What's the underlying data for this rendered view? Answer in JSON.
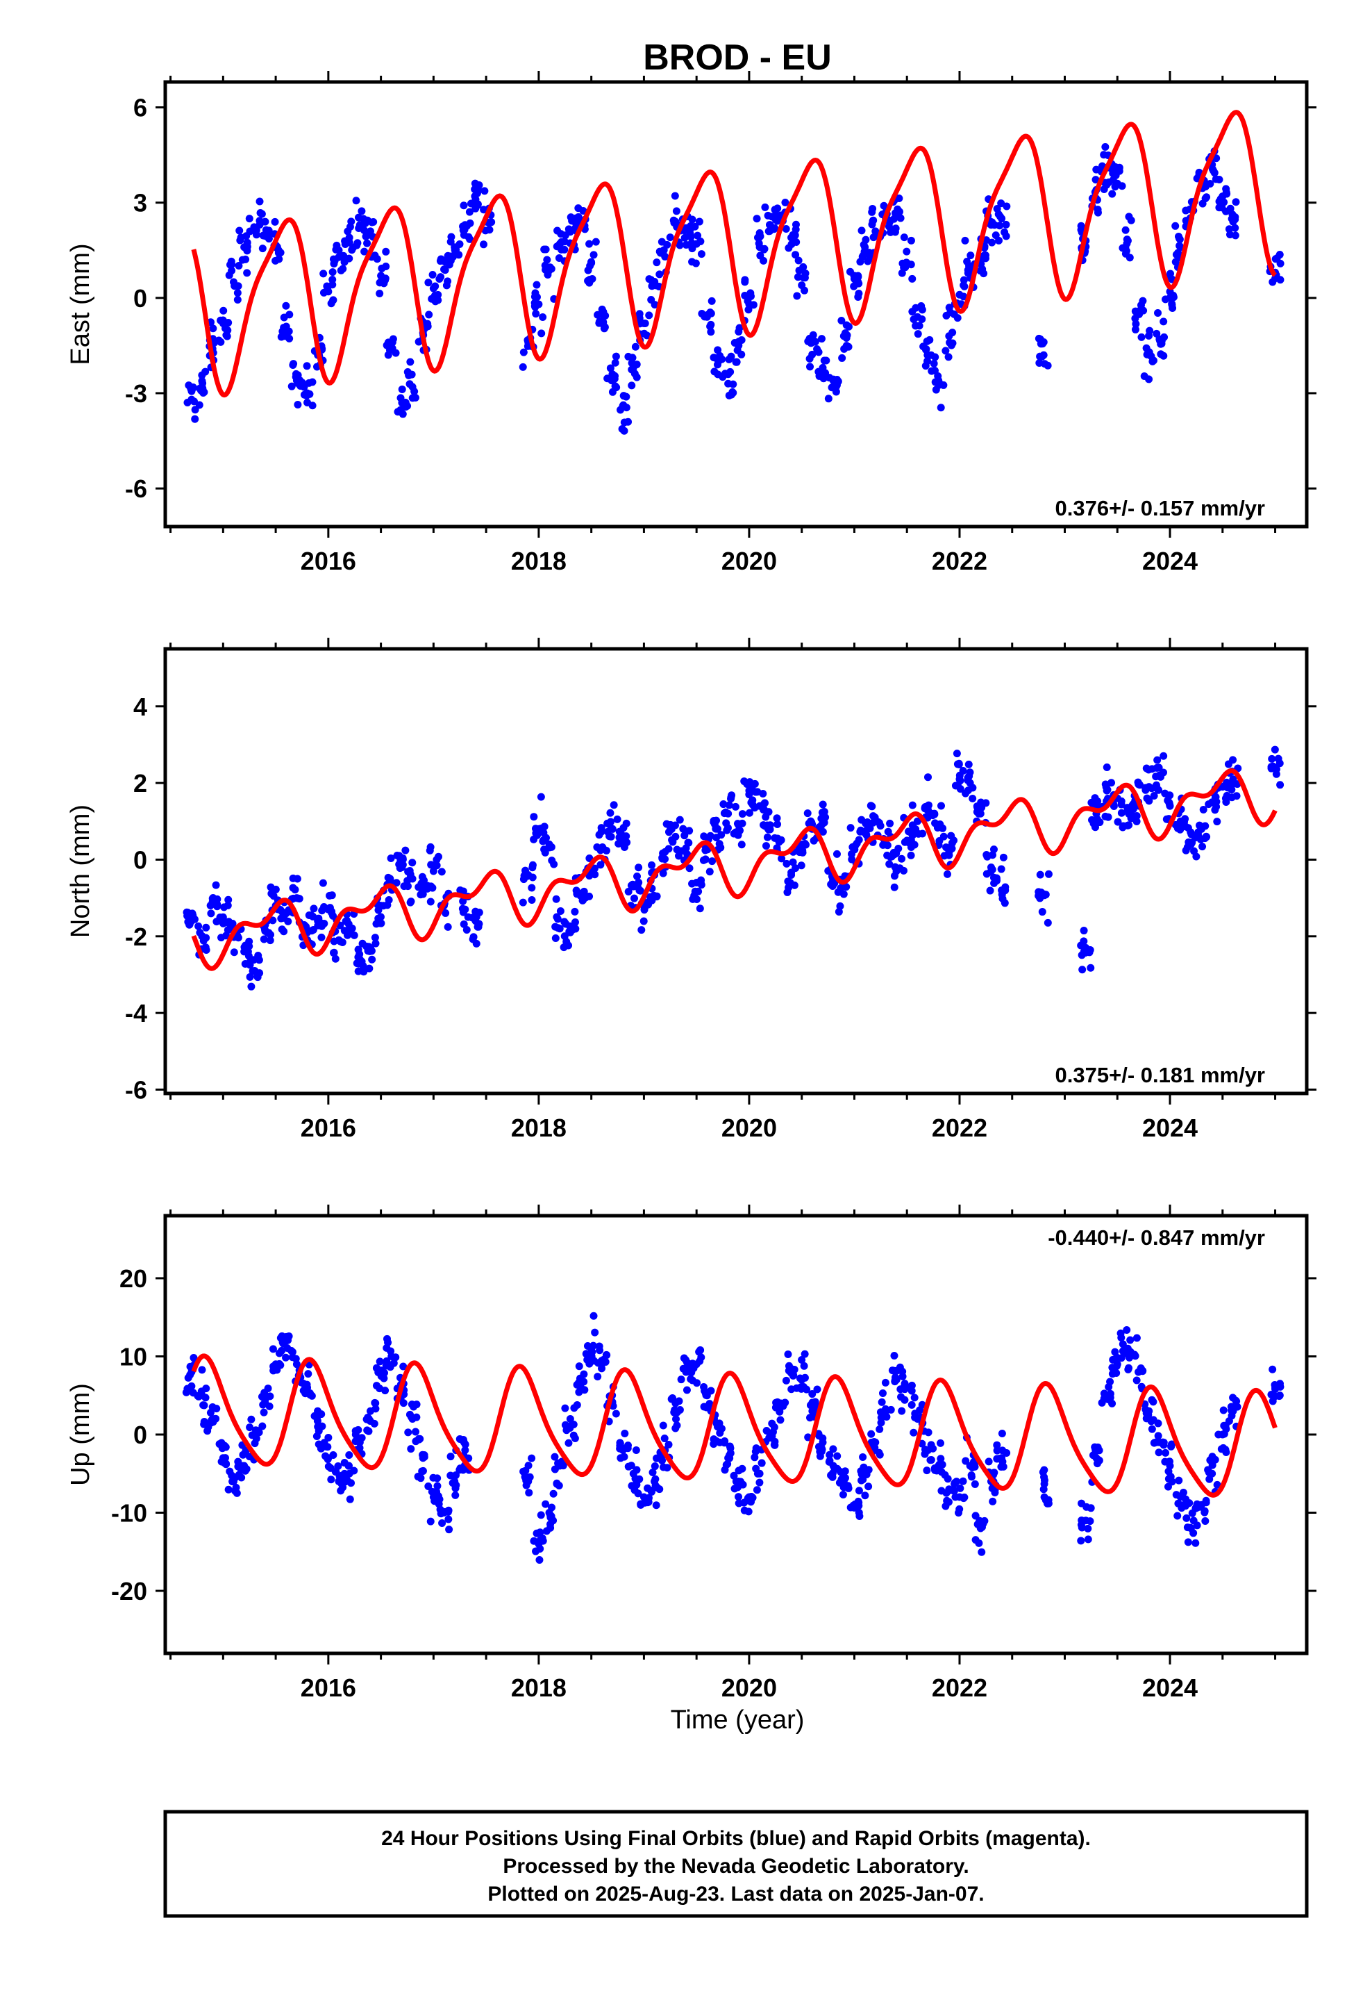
{
  "figure": {
    "title": "BROD - EU",
    "xlabel": "Time (year)",
    "footer_lines": [
      "24 Hour Positions Using Final Orbits (blue) and Rapid Orbits (magenta).",
      "Processed by the Nevada Geodetic Laboratory.",
      "Plotted on 2025-Aug-23. Last data on 2025-Jan-07."
    ],
    "colors": {
      "points": "#0000ff",
      "model": "#ff0000",
      "axes": "#000000"
    }
  },
  "chart_data": [
    {
      "type": "scatter",
      "ylabel": "East (mm)",
      "rate_label": "0.376+/- 0.157 mm/yr",
      "xlim": [
        2014.45,
        2025.3
      ],
      "ylim": [
        -7.2,
        6.8
      ],
      "xticks": [
        2016,
        2018,
        2020,
        2022,
        2024
      ],
      "yticks": [
        -6,
        -3,
        0,
        3,
        6
      ],
      "model": {
        "offset": -0.25,
        "rate": 0.376,
        "amp": 2.45,
        "phase_year": 0.3,
        "semi_amp": 0.6,
        "semi_phase": 0.1
      },
      "series": [
        {
          "name": "Final Orbits",
          "x": [
            2014.7,
            2014.8,
            2014.9,
            2015.0,
            2015.1,
            2015.2,
            2015.3,
            2015.4,
            2015.5,
            2015.6,
            2015.7,
            2015.8,
            2015.9,
            2016.0,
            2016.1,
            2016.2,
            2016.3,
            2016.4,
            2016.5,
            2016.6,
            2016.7,
            2016.8,
            2016.9,
            2017.0,
            2017.1,
            2017.2,
            2017.3,
            2017.4,
            2017.5,
            2017.9,
            2018.0,
            2018.1,
            2018.2,
            2018.3,
            2018.4,
            2018.5,
            2018.6,
            2018.7,
            2018.8,
            2018.9,
            2019.0,
            2019.1,
            2019.2,
            2019.3,
            2019.4,
            2019.5,
            2019.6,
            2019.7,
            2019.8,
            2019.9,
            2020.0,
            2020.1,
            2020.2,
            2020.3,
            2020.4,
            2020.5,
            2020.6,
            2020.7,
            2020.8,
            2020.9,
            2021.0,
            2021.1,
            2021.2,
            2021.3,
            2021.4,
            2021.5,
            2021.6,
            2021.7,
            2021.8,
            2021.9,
            2022.0,
            2022.1,
            2022.2,
            2022.3,
            2022.4,
            2022.8,
            2023.2,
            2023.3,
            2023.4,
            2023.5,
            2023.6,
            2023.7,
            2023.8,
            2023.9,
            2024.0,
            2024.1,
            2024.2,
            2024.3,
            2024.4,
            2024.5,
            2024.6,
            2025.0
          ],
          "y": [
            -3.2,
            -2.8,
            -1.6,
            -0.8,
            0.5,
            1.6,
            2.2,
            2.4,
            1.6,
            -0.9,
            -2.6,
            -3.0,
            -1.8,
            0.2,
            1.5,
            1.9,
            2.3,
            2.1,
            0.7,
            -1.6,
            -3.3,
            -2.8,
            -1.1,
            0.3,
            0.9,
            1.6,
            2.3,
            3.1,
            2.4,
            -1.4,
            -0.2,
            0.9,
            1.7,
            2.1,
            2.4,
            1.1,
            -0.8,
            -2.4,
            -3.4,
            -2.2,
            -0.8,
            0.4,
            1.3,
            2.4,
            2.2,
            1.7,
            -0.6,
            -2.1,
            -2.7,
            -1.5,
            -0.2,
            1.6,
            2.3,
            2.6,
            1.9,
            0.4,
            -1.4,
            -2.2,
            -2.6,
            -1.2,
            0.6,
            1.6,
            2.1,
            2.7,
            2.6,
            1.1,
            -0.6,
            -1.8,
            -2.6,
            -1.2,
            0.1,
            0.9,
            1.3,
            2.3,
            2.5,
            -1.8,
            1.8,
            3.4,
            4.1,
            3.6,
            1.8,
            -0.5,
            -1.7,
            -1.3,
            0.2,
            1.6,
            2.8,
            3.7,
            4.2,
            3.2,
            2.4,
            0.8
          ]
        }
      ]
    },
    {
      "type": "scatter",
      "ylabel": "North (mm)",
      "rate_label": "0.375+/- 0.181 mm/yr",
      "xlim": [
        2014.45,
        2025.3
      ],
      "ylim": [
        -6.1,
        5.5
      ],
      "xticks": [
        2016,
        2018,
        2020,
        2022,
        2024
      ],
      "yticks": [
        -6,
        -4,
        -2,
        0,
        2,
        4
      ],
      "model": {
        "offset": -2.05,
        "rate": 0.375,
        "amp": 0.55,
        "phase_year": 0.2,
        "semi_amp": 0.35,
        "semi_phase": 0.0
      },
      "series": [
        {
          "name": "Final Orbits",
          "x": [
            2014.7,
            2014.8,
            2014.9,
            2015.0,
            2015.1,
            2015.2,
            2015.3,
            2015.4,
            2015.5,
            2015.6,
            2015.7,
            2015.8,
            2015.9,
            2016.0,
            2016.1,
            2016.2,
            2016.3,
            2016.4,
            2016.5,
            2016.6,
            2016.7,
            2016.8,
            2016.9,
            2017.0,
            2017.1,
            2017.3,
            2017.4,
            2017.9,
            2018.0,
            2018.1,
            2018.2,
            2018.3,
            2018.4,
            2018.5,
            2018.6,
            2018.7,
            2018.8,
            2018.9,
            2019.0,
            2019.1,
            2019.2,
            2019.3,
            2019.4,
            2019.5,
            2019.6,
            2019.7,
            2019.8,
            2019.9,
            2020.0,
            2020.1,
            2020.2,
            2020.3,
            2020.4,
            2020.5,
            2020.6,
            2020.7,
            2020.8,
            2020.9,
            2021.0,
            2021.1,
            2021.2,
            2021.3,
            2021.4,
            2021.5,
            2021.6,
            2021.7,
            2021.8,
            2021.9,
            2022.0,
            2022.1,
            2022.2,
            2022.3,
            2022.4,
            2022.8,
            2023.2,
            2023.3,
            2023.4,
            2023.5,
            2023.6,
            2023.7,
            2023.8,
            2023.9,
            2024.0,
            2024.1,
            2024.2,
            2024.3,
            2024.4,
            2024.5,
            2024.6,
            2025.0
          ],
          "y": [
            -1.6,
            -2.0,
            -1.1,
            -1.5,
            -1.8,
            -2.4,
            -2.9,
            -1.7,
            -1.2,
            -1.4,
            -1.0,
            -1.9,
            -1.6,
            -1.3,
            -2.1,
            -1.8,
            -2.6,
            -2.3,
            -1.2,
            -0.6,
            -0.2,
            -0.5,
            -0.9,
            -0.3,
            -1.2,
            -1.3,
            -1.6,
            -0.4,
            0.8,
            0.4,
            -1.8,
            -1.9,
            -0.9,
            -0.2,
            0.3,
            0.8,
            0.5,
            -0.7,
            -1.1,
            -0.4,
            0.2,
            0.6,
            0.3,
            -0.6,
            0.4,
            0.8,
            1.2,
            0.9,
            1.8,
            1.4,
            0.9,
            0.5,
            -0.4,
            0.2,
            0.8,
            1.0,
            -0.6,
            -0.9,
            0.3,
            0.7,
            1.0,
            0.4,
            -0.3,
            0.5,
            1.0,
            1.3,
            0.9,
            0.2,
            2.1,
            2.0,
            1.2,
            -0.2,
            -0.8,
            -0.9,
            -2.3,
            1.2,
            1.8,
            1.6,
            1.3,
            1.5,
            1.9,
            2.2,
            1.4,
            1.0,
            0.4,
            0.8,
            1.5,
            1.9,
            2.1,
            2.4
          ]
        }
      ]
    },
    {
      "type": "scatter",
      "ylabel": "Up (mm)",
      "rate_label": "-0.440+/- 0.847 mm/yr",
      "xlim": [
        2014.45,
        2025.3
      ],
      "ylim": [
        -28,
        28
      ],
      "xticks": [
        2016,
        2018,
        2020,
        2022,
        2024
      ],
      "yticks": [
        -20,
        -10,
        0,
        10,
        20
      ],
      "model": {
        "offset": 2.7,
        "rate": -0.44,
        "amp": 6.5,
        "phase_year": 0.6,
        "semi_amp": 1.2,
        "semi_phase": 0.15
      },
      "series": [
        {
          "name": "Final Orbits",
          "x": [
            2014.7,
            2014.8,
            2014.9,
            2015.0,
            2015.1,
            2015.2,
            2015.3,
            2015.4,
            2015.5,
            2015.6,
            2015.7,
            2015.8,
            2015.9,
            2016.0,
            2016.1,
            2016.2,
            2016.3,
            2016.4,
            2016.5,
            2016.6,
            2016.7,
            2016.8,
            2016.9,
            2017.0,
            2017.1,
            2017.2,
            2017.3,
            2017.9,
            2018.0,
            2018.1,
            2018.2,
            2018.3,
            2018.4,
            2018.5,
            2018.6,
            2018.7,
            2018.8,
            2018.9,
            2019.0,
            2019.1,
            2019.2,
            2019.3,
            2019.4,
            2019.5,
            2019.6,
            2019.7,
            2019.8,
            2019.9,
            2020.0,
            2020.1,
            2020.2,
            2020.3,
            2020.4,
            2020.5,
            2020.6,
            2020.7,
            2020.8,
            2020.9,
            2021.0,
            2021.1,
            2021.2,
            2021.3,
            2021.4,
            2021.5,
            2021.6,
            2021.7,
            2021.8,
            2021.9,
            2022.0,
            2022.1,
            2022.2,
            2022.3,
            2022.4,
            2022.8,
            2023.2,
            2023.3,
            2023.4,
            2023.5,
            2023.6,
            2023.7,
            2023.8,
            2023.9,
            2024.0,
            2024.1,
            2024.2,
            2024.3,
            2024.4,
            2024.5,
            2024.6,
            2025.0
          ],
          "y": [
            8,
            5,
            2,
            -3,
            -6,
            -4,
            0,
            4,
            9,
            12,
            9,
            6,
            1,
            -3,
            -6,
            -5,
            -1,
            3,
            8,
            10,
            6,
            2,
            -3,
            -8,
            -10,
            -6,
            -2,
            -6,
            -14,
            -10,
            -4,
            2,
            6,
            11,
            9,
            4,
            -2,
            -5,
            -8,
            -6,
            -2,
            4,
            8,
            9,
            5,
            1,
            -3,
            -6,
            -8,
            -5,
            0,
            4,
            8,
            7,
            3,
            -1,
            -4,
            -6,
            -9,
            -5,
            -1,
            3,
            7,
            6,
            2,
            -2,
            -4,
            -7,
            -8,
            -4,
            -12,
            -6,
            -3,
            -7,
            -11,
            -3,
            5,
            9,
            11,
            8,
            3,
            -1,
            -4,
            -8,
            -12,
            -9,
            -5,
            0,
            3,
            6
          ]
        }
      ]
    }
  ]
}
